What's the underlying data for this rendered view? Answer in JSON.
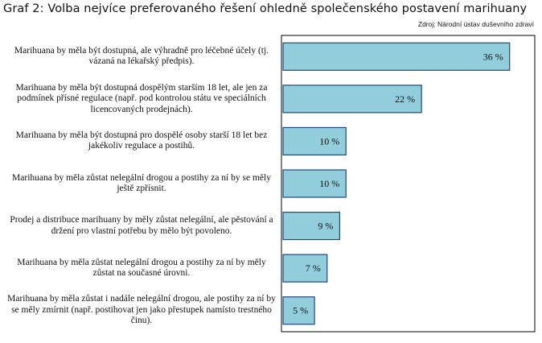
{
  "chart_data": {
    "type": "bar",
    "orientation": "horizontal",
    "title": "Graf 2: Volba nejvíce preferovaného řešení ohledně společenského postavení marihuany",
    "source": "Zdroj: Národní ústav duševního zdraví",
    "categories": [
      "Marihuana by měla být dostupná, ale výhradně pro léčebné účely (tj. vázaná na lékařský předpis).",
      "Marihuana by měla být dostupná dospělým starším 18 let, ale jen za podmínek přísné regulace (např. pod kontrolou státu ve speciálních licencovaných prodejnách).",
      "Marihuana by měla být dostupná pro dospělé osoby starší 18 let bez jakékoliv regulace a postihů.",
      "Marihuana by měla zůstat nelegální drogou a postihy za ní by se měly ještě zpřísnit.",
      "Prodej a distribuce marihuany by měly zůstat nelegální, ale pěstování a držení pro vlastní potřebu by mělo být povoleno.",
      "Marihuana by měla zůstat nelegální drogou a postihy za ní by měly zůstat na současné úrovni.",
      "Marihuana by měla zůstat i nadále nelegální drogou, ale postihy za ní by se měly zmírnit (např. postihovat jen jako přestupek namísto trestného činu)."
    ],
    "values": [
      36,
      22,
      10,
      10,
      9,
      7,
      5
    ],
    "data_labels": [
      "36 %",
      "22 %",
      "10 %",
      "10 %",
      "9 %",
      "7 %",
      "5 %"
    ],
    "xlim": [
      0,
      40
    ],
    "grid": false,
    "bar_color": "#92cddc",
    "bar_edge": "#1f497d"
  }
}
